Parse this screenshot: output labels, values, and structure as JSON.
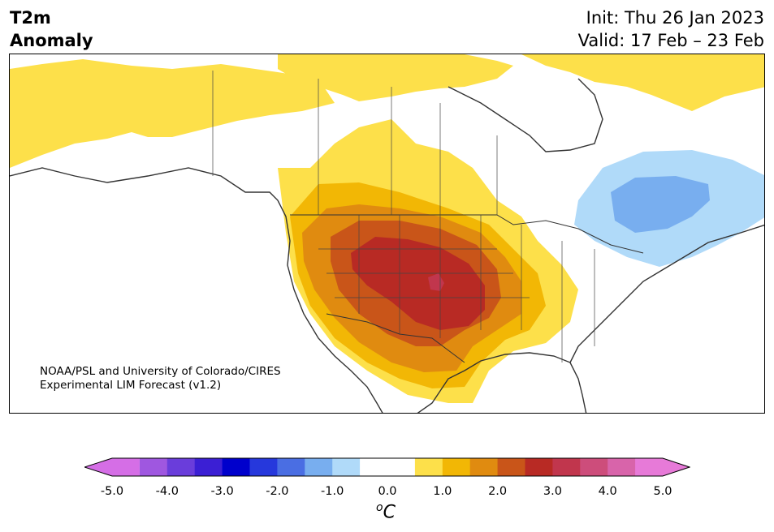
{
  "title": {
    "line1": "T2m",
    "line2": "Anomaly"
  },
  "dates": {
    "init": "Init: Thu 26 Jan 2023",
    "valid": "Valid: 17 Feb – 23 Feb"
  },
  "credit": {
    "line1": "NOAA/PSL and University of Colorado/CIRES",
    "line2": "Experimental LIM Forecast (v1.2)"
  },
  "colorbar": {
    "ticks": [
      "-5.0",
      "-4.0",
      "-3.0",
      "-2.0",
      "-1.0",
      "0.0",
      "1.0",
      "2.0",
      "3.0",
      "4.0",
      "5.0"
    ],
    "unit_super": "o",
    "unit_main": "C",
    "colors": [
      "#d56ee6",
      "#9f57e0",
      "#6a3ddb",
      "#3b1fd4",
      "#0000cc",
      "#2638dc",
      "#4a6ee3",
      "#78aeef",
      "#b0daf9",
      "#ffffff",
      "#ffffff",
      "#fde04a",
      "#f2b705",
      "#e08b10",
      "#c95519",
      "#b82a24",
      "#c1364d",
      "#cd4d7b",
      "#d864aa",
      "#e77ad8"
    ]
  },
  "map": {
    "land_color": "#ffffff",
    "border_color": "#333333",
    "warm_colors": [
      "#fde04a",
      "#f2b705",
      "#e08b10",
      "#c95519",
      "#b82a24",
      "#c1364d"
    ],
    "cool_colors": [
      "#b0daf9",
      "#78aeef"
    ]
  }
}
